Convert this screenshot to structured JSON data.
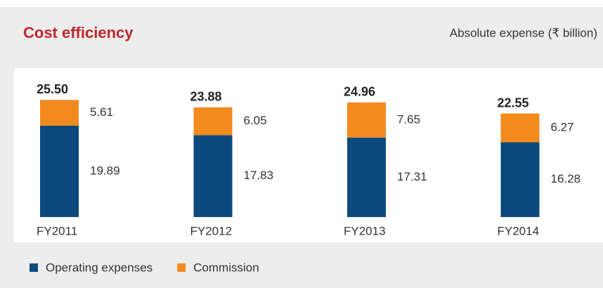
{
  "chart_data": {
    "type": "stacked_bar",
    "title": "Cost efficiency",
    "subtitle": "Absolute expense (₹ billion)",
    "categories": [
      "FY2011",
      "FY2012",
      "FY2013",
      "FY2014"
    ],
    "series": [
      {
        "name": "Operating expenses",
        "color": "#0c4a7d",
        "values": [
          19.89,
          17.83,
          17.31,
          16.28
        ]
      },
      {
        "name": "Commission",
        "color": "#f28a1e",
        "values": [
          5.61,
          6.05,
          7.65,
          6.27
        ]
      }
    ],
    "totals": [
      25.5,
      23.88,
      24.96,
      22.55
    ],
    "total_labels": [
      "25.50",
      "23.88",
      "24.96",
      "22.55"
    ]
  }
}
